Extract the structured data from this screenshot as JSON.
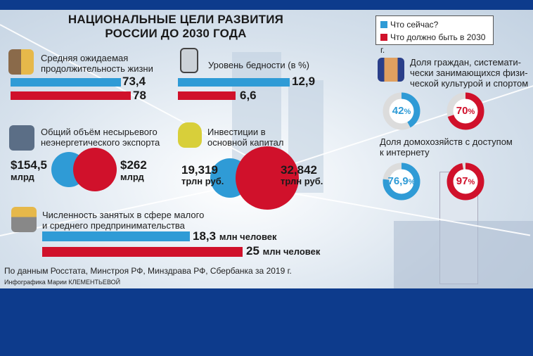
{
  "title": {
    "line1": "НАЦИОНАЛЬНЫЕ ЦЕЛИ РАЗВИТИЯ",
    "line2": "РОССИИ ДО 2030 ГОДА"
  },
  "legend": {
    "now": "Что сейчас?",
    "target": "Что должно быть в 2030 г."
  },
  "colors": {
    "now": "#2f9bd6",
    "target": "#d0112b",
    "frame": "#0d3b8c"
  },
  "life": {
    "label1": "Средняя ожидаемая",
    "label2": "продолжительность жизни",
    "now": "73,4",
    "target": "78",
    "icon": "elderly-couple-icon"
  },
  "poverty": {
    "label": "Уровень бедности (в %)",
    "now": "12,9",
    "target": "6,6",
    "icon": "coin-jar-icon"
  },
  "export": {
    "label1": "Общий объём несырьевого",
    "label2": "неэнергетического экспорта",
    "now": "$154,5",
    "now_unit": "млрд",
    "target": "$262",
    "target_unit": "млрд",
    "icon": "globe-export-icon"
  },
  "invest": {
    "label1": "Инвестиции в",
    "label2": "основной капитал",
    "now": "19,319",
    "now_unit": "трлн руб.",
    "target": "32,842",
    "target_unit": "трлн руб.",
    "icon": "money-bag-icon"
  },
  "sme": {
    "label1": "Численность занятых в сфере малого",
    "label2": "и среднего предпринимательства",
    "now": "18,3",
    "target": "25",
    "unit": "млн человек",
    "icon": "businessman-icon"
  },
  "sport": {
    "label1": "Доля граждан, системати-",
    "label2": "чески занимающихся физи-",
    "label3": "ческой культурой и спортом",
    "now": "42",
    "target": "70",
    "pct": "%",
    "icon": "dumbbell-fist-icon"
  },
  "internet": {
    "label1": "Доля домохозяйств с доступом",
    "label2": "к интернету",
    "now": "76,9",
    "target": "97",
    "pct": "%"
  },
  "footer": {
    "source": "По данным Росстата, Минстроя РФ, Минздрава РФ, Сбербанка за 2019 г.",
    "credit": "Инфографика Марии КЛЕМЕНТЬЕВОЙ"
  },
  "chart_data": [
    {
      "type": "bar",
      "title": "Средняя ожидаемая продолжительность жизни",
      "categories": [
        "Что сейчас?",
        "Что должно быть в 2030 г."
      ],
      "values": [
        73.4,
        78
      ]
    },
    {
      "type": "bar",
      "title": "Уровень бедности (в %)",
      "categories": [
        "Что сейчас?",
        "Что должно быть в 2030 г."
      ],
      "values": [
        12.9,
        6.6
      ]
    },
    {
      "type": "bubble",
      "title": "Общий объём несырьевого неэнергетического экспорта",
      "unit": "млрд $",
      "categories": [
        "Что сейчас?",
        "Что должно быть в 2030 г."
      ],
      "values": [
        154.5,
        262
      ]
    },
    {
      "type": "bubble",
      "title": "Инвестиции в основной капитал",
      "unit": "трлн руб.",
      "categories": [
        "Что сейчас?",
        "Что должно быть в 2030 г."
      ],
      "values": [
        19.319,
        32.842
      ]
    },
    {
      "type": "bar",
      "title": "Численность занятых в сфере малого и среднего предпринимательства",
      "unit": "млн человек",
      "categories": [
        "Что сейчас?",
        "Что должно быть в 2030 г."
      ],
      "values": [
        18.3,
        25
      ]
    },
    {
      "type": "donut",
      "title": "Доля граждан, систематически занимающихся физической культурой и спортом",
      "unit": "%",
      "categories": [
        "Что сейчас?",
        "Что должно быть в 2030 г."
      ],
      "values": [
        42,
        70
      ]
    },
    {
      "type": "donut",
      "title": "Доля домохозяйств с доступом к интернету",
      "unit": "%",
      "categories": [
        "Что сейчас?",
        "Что должно быть в 2030 г."
      ],
      "values": [
        76.9,
        97
      ]
    }
  ]
}
